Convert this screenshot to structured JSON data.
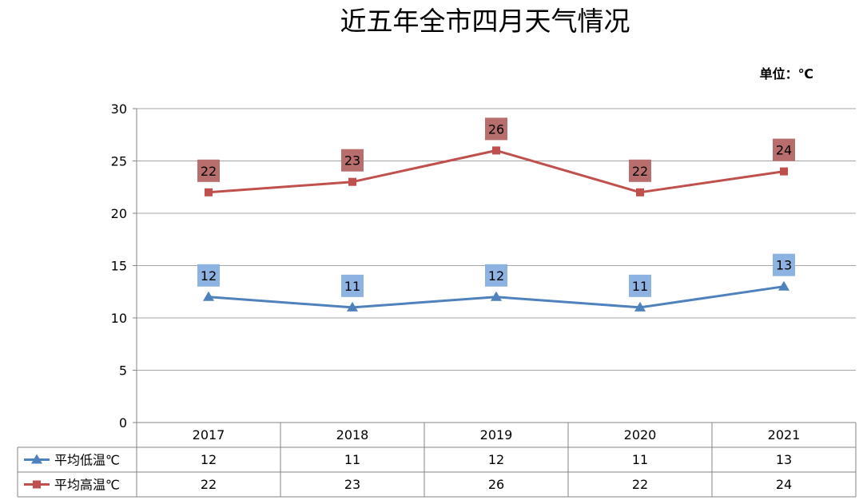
{
  "chart_data": {
    "type": "line",
    "title": "近五年全市四月天气情况",
    "unit_label": "单位：℃",
    "categories": [
      "2017",
      "2018",
      "2019",
      "2020",
      "2021"
    ],
    "ylim": [
      0,
      30
    ],
    "yticks": [
      0,
      5,
      10,
      15,
      20,
      25,
      30
    ],
    "grid": true,
    "data_table": true,
    "series": [
      {
        "name": "平均低温℃",
        "values": [
          12,
          11,
          12,
          11,
          13
        ],
        "color": "#4f81bd",
        "label_bg": "#8db3e2",
        "marker": "triangle"
      },
      {
        "name": "平均高温℃",
        "values": [
          22,
          23,
          26,
          22,
          24
        ],
        "color": "#c0504d",
        "label_bg": "#b76e6c",
        "marker": "square"
      }
    ]
  }
}
